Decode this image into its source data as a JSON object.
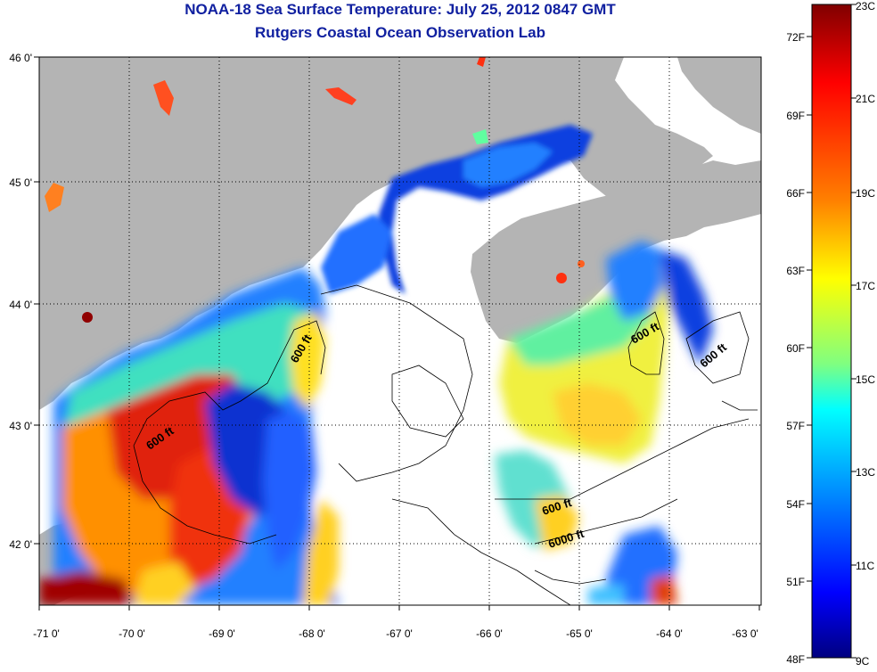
{
  "title": "NOAA-18 Sea Surface Temperature:  July 25, 2012 0847 GMT",
  "subtitle": "Rutgers Coastal Ocean Observation Lab",
  "map": {
    "lon_ticks": [
      "-71 0'",
      "-70 0'",
      "-69 0'",
      "-68 0'",
      "-67 0'",
      "-66 0'",
      "-65 0'",
      "-64 0'",
      "-63 0'"
    ],
    "lat_ticks": [
      "46 0'",
      "45 0'",
      "44 0'",
      "43 0'",
      "42 0'"
    ],
    "contour_labels": [
      "600 ft",
      "600 ft",
      "600 ft",
      "600 ft",
      "600 ft",
      "6000 ft"
    ],
    "land_color": "#b4b4b4",
    "no_data_color": "#ffffff"
  },
  "colorbar": {
    "fahrenheit_labels": [
      "72F",
      "69F",
      "66F",
      "63F",
      "60F",
      "57F",
      "54F",
      "51F",
      "48F"
    ],
    "celsius_labels": [
      "23C",
      "21C",
      "19C",
      "17C",
      "15C",
      "13C",
      "11C",
      "9C"
    ],
    "colors": [
      "#800000",
      "#ff0000",
      "#ff8000",
      "#ffff00",
      "#80ff80",
      "#00ffff",
      "#0080ff",
      "#0000ff",
      "#000080"
    ]
  }
}
